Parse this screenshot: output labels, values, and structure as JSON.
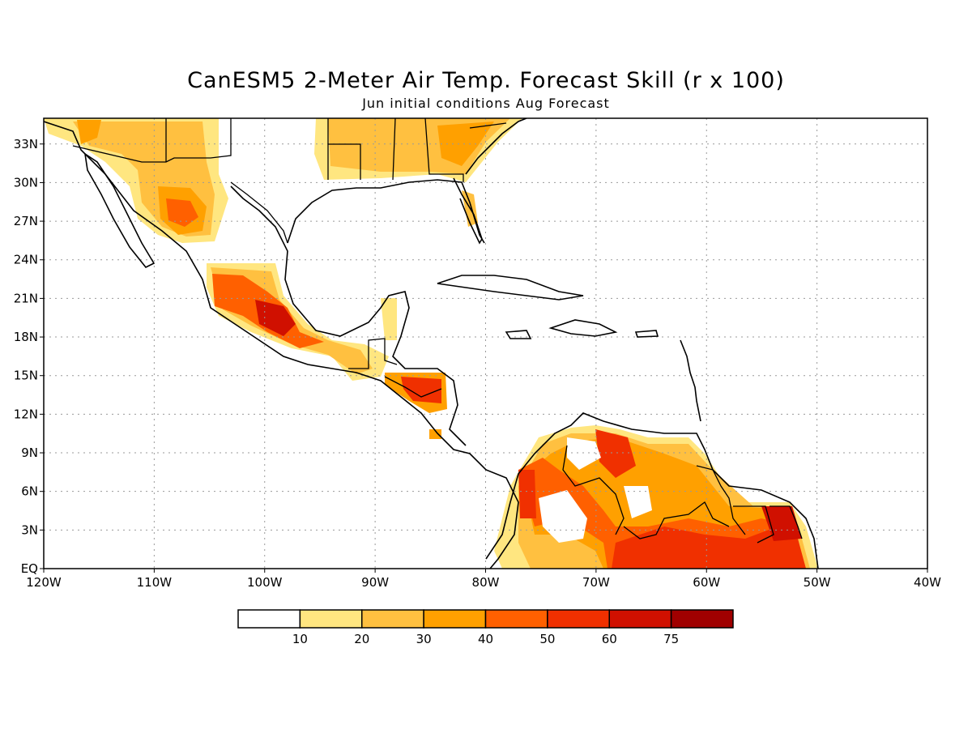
{
  "title": "CanESM5 2-Meter Air Temp. Forecast Skill (r x 100)",
  "subtitle": "Jun initial conditions  Aug Forecast",
  "lat_labels": [
    "33N",
    "30N",
    "27N",
    "24N",
    "21N",
    "18N",
    "15N",
    "12N",
    "9N",
    "6N",
    "3N",
    "EQ"
  ],
  "lon_labels": [
    "120W",
    "110W",
    "100W",
    "90W",
    "80W",
    "70W",
    "60W",
    "50W",
    "40W"
  ],
  "colorbar": {
    "labels": [
      "10",
      "20",
      "30",
      "40",
      "50",
      "60",
      "75"
    ],
    "colors": [
      "#ffffff",
      "#ffe680",
      "#ffc040",
      "#ffa000",
      "#ff6000",
      "#f03000",
      "#d01000",
      "#a00000"
    ]
  },
  "map": {
    "lon_range": [
      -120,
      -40
    ],
    "lat_range": [
      0,
      35
    ],
    "grid": "dotted"
  }
}
